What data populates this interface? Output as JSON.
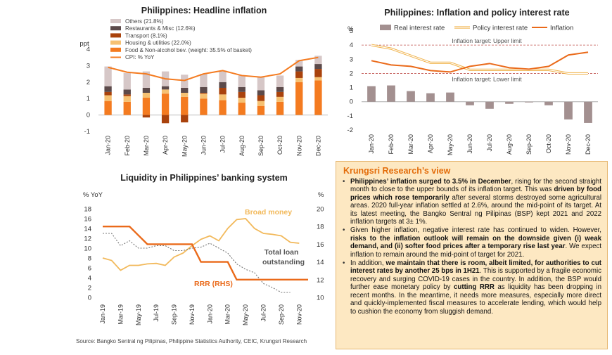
{
  "colors": {
    "others": "#d6c7c7",
    "restaurants": "#5c4a4a",
    "transport": "#a9420c",
    "housing": "#f6c172",
    "food": "#f47b20",
    "cpi": "#f47b20",
    "real_rate": "#a39090",
    "policy_rate": "#f0b24a",
    "inflation": "#ea6a1a",
    "broad_money": "#f2b95b",
    "loans": "#777777",
    "rrr": "#ea6a1a"
  },
  "chart_data": [
    {
      "type": "bar",
      "stacked": true,
      "title": "Philippines: Headline inflation",
      "ylabel": "ppt",
      "ylim": [
        -1,
        4
      ],
      "yticks": [
        "-1",
        "0",
        "1",
        "2",
        "3",
        "4"
      ],
      "categories": [
        "Jan-20",
        "Feb-20",
        "Mar-20",
        "Apr-20",
        "May-20",
        "Jun-20",
        "Jul-20",
        "Aug-20",
        "Sep-20",
        "Oct-20",
        "Nov-20",
        "Dec-20"
      ],
      "series": [
        {
          "name": "Food & Non-alcohol bev. (weight: 35.5% of basket)",
          "key": "food",
          "values": [
            0.85,
            0.8,
            1.05,
            1.3,
            1.1,
            1.0,
            0.9,
            0.75,
            0.55,
            0.8,
            2.0,
            2.1
          ]
        },
        {
          "name": "Housing & utilities (22.0%)",
          "key": "housing",
          "values": [
            0.35,
            0.35,
            0.3,
            0.25,
            0.25,
            0.3,
            0.35,
            0.3,
            0.3,
            0.3,
            0.25,
            0.2
          ]
        },
        {
          "name": "Transport (8.1%)",
          "key": "transport",
          "values": [
            0.2,
            0.1,
            -0.15,
            -0.5,
            -0.45,
            0.05,
            0.4,
            0.35,
            0.35,
            0.3,
            0.4,
            0.5
          ]
        },
        {
          "name": "Restaurants & Misc (12.6%)",
          "key": "restaurants",
          "values": [
            0.35,
            0.3,
            0.3,
            0.2,
            0.3,
            0.35,
            0.35,
            0.3,
            0.3,
            0.3,
            0.3,
            0.3
          ]
        },
        {
          "name": "Others (21.8%)",
          "key": "others",
          "values": [
            1.2,
            1.0,
            1.0,
            0.9,
            0.8,
            0.8,
            0.7,
            0.7,
            0.8,
            0.7,
            0.4,
            0.5
          ]
        }
      ],
      "line": {
        "name": "CPI: % YoY",
        "key": "cpi",
        "values": [
          2.9,
          2.6,
          2.5,
          2.2,
          2.1,
          2.5,
          2.7,
          2.4,
          2.3,
          2.5,
          3.3,
          3.5
        ]
      },
      "legend_order": [
        "others",
        "restaurants",
        "transport",
        "housing",
        "food",
        "cpi"
      ],
      "grid": false,
      "legend_position": "top-left"
    },
    {
      "type": "bar",
      "title": "Philippines: Inflation and policy interest rate",
      "ylabel": "%",
      "ylim": [
        -2,
        5
      ],
      "yticks": [
        "-2",
        "-1",
        "0",
        "1",
        "2",
        "3",
        "4",
        "5"
      ],
      "categories": [
        "Jan-20",
        "Feb-20",
        "Mar-20",
        "Apr-20",
        "May-20",
        "Jun-20",
        "Jul-20",
        "Aug-20",
        "Sep-20",
        "Oct-20",
        "Nov-20",
        "Dec-20"
      ],
      "series": [
        {
          "name": "Real interest rate",
          "key": "real_rate",
          "type": "bar",
          "values": [
            1.1,
            1.15,
            0.75,
            0.6,
            0.65,
            -0.25,
            -0.5,
            -0.15,
            -0.05,
            -0.25,
            -1.25,
            -1.5
          ]
        },
        {
          "name": "Policy interest rate",
          "key": "policy_rate",
          "type": "line",
          "values": [
            4.0,
            3.75,
            3.25,
            2.75,
            2.75,
            2.25,
            2.25,
            2.25,
            2.25,
            2.25,
            2.0,
            2.0
          ]
        },
        {
          "name": "Inflation",
          "key": "inflation",
          "type": "line",
          "values": [
            2.9,
            2.6,
            2.5,
            2.2,
            2.1,
            2.5,
            2.7,
            2.4,
            2.3,
            2.5,
            3.3,
            3.5
          ]
        }
      ],
      "reference_lines": [
        {
          "label": "Inflation target: Upper limit",
          "value": 4
        },
        {
          "label": "Inflation target: Lower limit",
          "value": 2
        }
      ],
      "legend_position": "top",
      "grid": false
    },
    {
      "type": "line",
      "title": "Liquidity in Philippines’ banking system",
      "ylabel_left": "% YoY",
      "ylabel_right": "%",
      "ylim_left": [
        0,
        18
      ],
      "ylim_right": [
        10,
        20
      ],
      "yticks_left": [
        "0",
        "2",
        "4",
        "6",
        "8",
        "10",
        "12",
        "14",
        "16",
        "18"
      ],
      "yticks_right": [
        "10",
        "12",
        "14",
        "16",
        "18",
        "20"
      ],
      "categories": [
        "Jan-19",
        "Feb-19",
        "Mar-19",
        "Apr-19",
        "May-19",
        "Jun-19",
        "Jul-19",
        "Aug-19",
        "Sep-19",
        "Oct-19",
        "Nov-19",
        "Dec-19",
        "Jan-20",
        "Feb-20",
        "Mar-20",
        "Apr-20",
        "May-20",
        "Jun-20",
        "Jul-20",
        "Aug-20",
        "Sep-20",
        "Oct-20",
        "Nov-20",
        "Dec-20"
      ],
      "xtick_labels": [
        "Jan-19",
        "Mar-19",
        "May-19",
        "Jul-19",
        "Sep-19",
        "Nov-19",
        "Jan-20",
        "Mar-20",
        "May-20",
        "Jul-20",
        "Sep-20",
        "Nov-20"
      ],
      "series": [
        {
          "name": "Broad money",
          "key": "broad_money",
          "axis": "left",
          "values": [
            8.0,
            7.5,
            5.5,
            6.5,
            6.5,
            6.8,
            6.9,
            6.5,
            8.2,
            9.0,
            10.5,
            11.8,
            12.5,
            11.5,
            14.0,
            15.8,
            16.0,
            14.0,
            13.0,
            12.8,
            12.5,
            11.2,
            11.0,
            null
          ]
        },
        {
          "name": "Total loan outstanding",
          "key": "loans",
          "axis": "left",
          "values": [
            13.0,
            13.0,
            10.5,
            11.5,
            10.0,
            10.0,
            10.5,
            10.5,
            9.5,
            9.5,
            10.0,
            10.2,
            11.0,
            10.0,
            9.0,
            6.8,
            5.7,
            5.0,
            2.8,
            2.0,
            1.0,
            1.0,
            null,
            null
          ]
        },
        {
          "name": "RRR (RHS)",
          "key": "rrr",
          "axis": "right",
          "values": [
            18,
            18,
            18,
            18,
            17,
            16,
            16,
            16,
            16,
            16,
            16,
            14,
            14,
            14,
            14,
            12,
            12,
            12,
            12,
            12,
            12,
            12,
            12,
            12
          ]
        }
      ],
      "grid": false
    }
  ],
  "view": {
    "title": "Krungsri Research’s view",
    "bullets": [
      {
        "parts": [
          {
            "t": "Philippines’ inflation surged to 3.5% in December",
            "b": true
          },
          {
            "t": ", rising for the second straight month to close to the upper bounds of its inflation target. This was ",
            "b": false
          },
          {
            "t": "driven by food prices which rose temporarily",
            "b": true
          },
          {
            "t": " after several storms destroyed some agricultural areas. 2020 full-year inflation settled at 2.6%,  around the mid-point of its target. At its latest meeting, the Bangko Sentral ng Pilipinas (BSP) kept 2021 and 2022 inflation targets at 3± 1%.",
            "b": false
          }
        ]
      },
      {
        "parts": [
          {
            "t": "Given higher inflation, negative interest rate has continued to widen. However, ",
            "b": false
          },
          {
            "t": "risks to the inflation outlook will remain on the downside given (i) weak demand, and (ii) softer food prices after a temporary rise last year",
            "b": true
          },
          {
            "t": ". We expect inflation to remain around the mid-point of target for 2021.",
            "b": false
          }
        ]
      },
      {
        "parts": [
          {
            "t": "In addition, ",
            "b": false
          },
          {
            "t": "we maintain that there is room, albeit limited, for authorities to cut interest rates by another 25 bps in 1H21",
            "b": true
          },
          {
            "t": ". This is supported by a fragile economic recovery and surging COVID-19 cases in the country. In addition, the BSP would further ease monetary policy by ",
            "b": false
          },
          {
            "t": "cutting RRR",
            "b": true
          },
          {
            "t": " as liquidity has been dropping in recent months. In the meantime, it needs more measures, especially more direct and quickly-implemented fiscal measures to accelerate lending, which would help to cushion the economy from sluggish demand.",
            "b": false
          }
        ]
      }
    ]
  },
  "source": "Source: Bangko Sentral ng Pilipinas, Philippine Statistics Authority, CEIC, Krungsri Research"
}
